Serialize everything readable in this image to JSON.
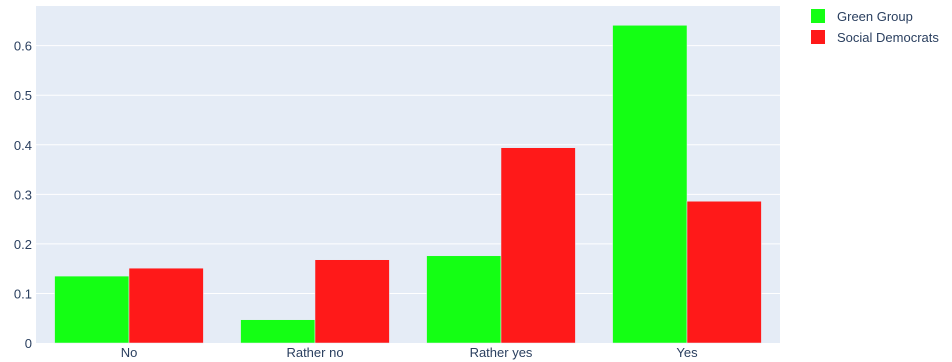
{
  "chart_data": {
    "type": "bar",
    "barmode": "group",
    "categories": [
      "No",
      "Rather no",
      "Rather yes",
      "Yes"
    ],
    "series": [
      {
        "name": "Green Group",
        "color": "#14ff14",
        "values": [
          0.135,
          0.047,
          0.176,
          0.641
        ]
      },
      {
        "name": "Social Democrats",
        "color": "#ff1919",
        "values": [
          0.151,
          0.168,
          0.394,
          0.286
        ]
      }
    ],
    "ylim": [
      0,
      0.68
    ],
    "yticks": [
      0,
      0.1,
      0.2,
      0.3,
      0.4,
      0.5,
      0.6
    ],
    "ytick_labels": [
      "0",
      "0.1",
      "0.2",
      "0.3",
      "0.4",
      "0.5",
      "0.6"
    ],
    "grid": true,
    "plot_background": "#e5ecf6",
    "legend_position": "top-right"
  }
}
